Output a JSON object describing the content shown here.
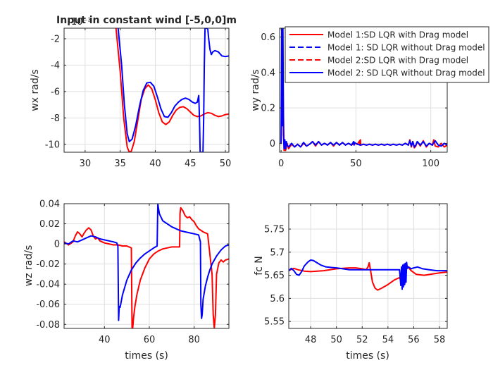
{
  "colors": {
    "model1": "#ff0000",
    "model2": "#0000ff",
    "axis": "#262626",
    "grid": "#dfdfdf"
  },
  "legend": {
    "placement": "top-right",
    "entries": [
      {
        "label": "Model 1:SD LQR with Drag model",
        "color": "#ff0000",
        "style": "solid"
      },
      {
        "label": "Model 1: SD LQR without Drag model",
        "color": "#0000ff",
        "style": "dashed"
      },
      {
        "label": "Model 2:SD LQR with Drag model",
        "color": "#ff0000",
        "style": "dashed"
      },
      {
        "label": "Model 2: SD LQR without Drag model",
        "color": "#0000ff",
        "style": "solid"
      }
    ]
  },
  "chart_data": [
    {
      "type": "line",
      "title": "Input in constant wind [-5,0,0]m",
      "xlabel": "",
      "ylabel": "wx rad/s",
      "exponent_label": "10⁻³",
      "xlim": [
        27,
        50.5
      ],
      "ylim": [
        -10.6,
        -1.2
      ],
      "xticks": [
        30,
        35,
        40,
        45,
        50
      ],
      "yticks": [
        -10,
        -8,
        -6,
        -4,
        -2
      ],
      "grid": true,
      "series": [
        {
          "name": "Model 1:SD LQR with Drag model",
          "color": "#ff0000",
          "dash": "solid",
          "x": [
            34.4,
            35.0,
            35.5,
            36.0,
            36.3,
            36.6,
            37.0,
            37.5,
            38.0,
            38.5,
            39.0,
            39.5,
            40.0,
            40.5,
            41.0,
            41.5,
            42.0,
            42.5,
            43.0,
            43.5,
            44.0,
            44.5,
            45.0,
            45.5,
            46.0,
            46.5,
            47.0,
            47.5,
            48.0,
            48.5,
            49.0,
            49.5,
            50.0,
            50.5
          ],
          "y": [
            -1.2,
            -4.5,
            -8.0,
            -10.2,
            -10.6,
            -10.5,
            -9.8,
            -8.2,
            -6.6,
            -5.8,
            -5.5,
            -5.8,
            -6.6,
            -7.6,
            -8.3,
            -8.5,
            -8.3,
            -7.8,
            -7.4,
            -7.2,
            -7.15,
            -7.3,
            -7.55,
            -7.8,
            -7.9,
            -7.85,
            -7.7,
            -7.6,
            -7.65,
            -7.8,
            -7.9,
            -7.85,
            -7.75,
            -7.7
          ]
        },
        {
          "name": "Model 2: SD LQR without Drag model",
          "color": "#0000ff",
          "dash": "solid",
          "x": [
            34.7,
            35.2,
            35.6,
            36.0,
            36.3,
            36.7,
            37.2,
            37.8,
            38.3,
            38.8,
            39.3,
            39.8,
            40.3,
            40.8,
            41.3,
            41.8,
            42.3,
            42.8,
            43.3,
            43.8,
            44.3,
            44.8,
            45.3,
            45.7,
            46.0,
            46.2,
            46.3,
            46.4,
            46.5,
            46.6,
            46.8,
            46.9,
            47.0,
            47.1,
            47.2,
            47.4,
            47.5,
            47.6,
            47.8,
            48.0,
            48.2,
            48.5,
            49.0,
            49.5,
            50.0,
            50.5
          ],
          "y": [
            -1.2,
            -4.0,
            -7.0,
            -9.2,
            -9.8,
            -9.6,
            -8.6,
            -7.0,
            -5.9,
            -5.35,
            -5.3,
            -5.6,
            -6.4,
            -7.3,
            -7.9,
            -7.95,
            -7.6,
            -7.1,
            -6.8,
            -6.6,
            -6.5,
            -6.6,
            -6.8,
            -6.9,
            -6.8,
            -6.3,
            -8.0,
            -10.6,
            -10.6,
            -10.6,
            -10.6,
            -8.0,
            -4.0,
            -1.2,
            -1.2,
            -1.2,
            -1.3,
            -1.9,
            -2.8,
            -3.2,
            -3.0,
            -2.9,
            -3.0,
            -3.3,
            -3.35,
            -3.3
          ]
        }
      ]
    },
    {
      "type": "line",
      "xlabel": "",
      "ylabel": "wy rad/s",
      "xlim": [
        -1,
        111
      ],
      "ylim": [
        -0.05,
        0.65
      ],
      "xticks": [
        0,
        50,
        100
      ],
      "yticks": [
        0,
        0.2,
        0.4,
        0.6
      ],
      "ytick_labels": [
        "0",
        "0.2",
        "0.4",
        "0.6"
      ],
      "grid": true,
      "series": [
        {
          "name": "Model 1:SD LQR with Drag model",
          "color": "#ff0000",
          "dash": "solid",
          "x": [
            0,
            0.5,
            1.0,
            1.5,
            2.0,
            2.5,
            3.0,
            3.5,
            4.0,
            5,
            7,
            9,
            11,
            13,
            15,
            17,
            19,
            21,
            23,
            25,
            27,
            29,
            31,
            33,
            35,
            37,
            39,
            41,
            43,
            45,
            47,
            49,
            51,
            52.5,
            52.8,
            53.0,
            53.2,
            55,
            57,
            59,
            61,
            63,
            65,
            67,
            69,
            71,
            73,
            75,
            77,
            79,
            81,
            83,
            85,
            86,
            87,
            88,
            89,
            90,
            91,
            93,
            95,
            97,
            99,
            101,
            102,
            103,
            105,
            107,
            109,
            111
          ],
          "y": [
            0,
            0.3,
            0.65,
            0.2,
            -0.04,
            0.02,
            -0.04,
            -0.02,
            0.0,
            -0.03,
            -0.005,
            -0.02,
            -0.005,
            -0.02,
            0.0,
            -0.015,
            -0.005,
            0.01,
            -0.015,
            0.01,
            -0.01,
            0.0,
            -0.01,
            0.005,
            -0.015,
            0.005,
            -0.01,
            0.005,
            -0.01,
            0.0,
            -0.01,
            0.0,
            -0.005,
            0.015,
            -0.01,
            0.02,
            -0.01,
            -0.005,
            -0.01,
            -0.005,
            -0.01,
            -0.005,
            -0.01,
            -0.005,
            -0.01,
            -0.005,
            -0.01,
            -0.005,
            -0.01,
            -0.005,
            -0.01,
            0.0,
            -0.01,
            0.02,
            -0.02,
            0.01,
            -0.025,
            -0.015,
            0.01,
            -0.015,
            0.015,
            -0.02,
            0.0,
            -0.01,
            0.02,
            -0.015,
            -0.02,
            0.0,
            -0.02,
            -0.01
          ]
        },
        {
          "name": "Model 2: SD LQR without Drag model",
          "color": "#0000ff",
          "dash": "solid",
          "x": [
            0,
            0.4,
            0.8,
            1.2,
            1.6,
            2.0,
            2.5,
            3.0,
            3.5,
            4.0,
            5,
            7,
            9,
            11,
            13,
            15,
            17,
            19,
            21,
            23,
            25,
            27,
            29,
            31,
            33,
            35,
            37,
            39,
            41,
            43,
            45,
            47,
            48.5,
            48.8,
            49,
            51,
            53,
            55,
            57,
            59,
            61,
            63,
            65,
            67,
            69,
            71,
            73,
            75,
            77,
            79,
            81,
            83,
            85,
            86,
            87,
            88,
            89,
            90,
            91,
            93,
            95,
            97,
            99,
            101,
            103,
            105,
            107,
            109,
            111
          ],
          "y": [
            0,
            0.65,
            0.1,
            0.65,
            0.05,
            -0.03,
            0.02,
            -0.03,
            0.01,
            -0.01,
            -0.02,
            0.0,
            -0.02,
            -0.005,
            -0.02,
            0.005,
            -0.015,
            -0.005,
            0.01,
            -0.01,
            0.01,
            -0.01,
            0.0,
            -0.01,
            0.005,
            -0.01,
            0.005,
            -0.01,
            0.005,
            -0.01,
            0.0,
            -0.01,
            0.01,
            -0.01,
            0.005,
            -0.005,
            -0.01,
            -0.005,
            -0.01,
            -0.005,
            -0.01,
            -0.005,
            -0.01,
            -0.005,
            -0.01,
            -0.005,
            -0.01,
            -0.005,
            -0.01,
            -0.005,
            -0.01,
            0.0,
            -0.01,
            0.015,
            -0.015,
            0.01,
            -0.02,
            -0.01,
            0.01,
            -0.01,
            0.01,
            -0.015,
            0.0,
            -0.01,
            0.015,
            -0.01,
            -0.015,
            0.0,
            -0.01
          ]
        }
      ]
    },
    {
      "type": "line",
      "xlabel": "times (s)",
      "ylabel": "wz rad/s",
      "xlim": [
        22,
        95.5
      ],
      "ylim": [
        -0.084,
        0.04
      ],
      "xticks": [
        40,
        60,
        80
      ],
      "yticks": [
        -0.08,
        -0.06,
        -0.04,
        -0.02,
        0,
        0.02,
        0.04
      ],
      "ytick_labels": [
        "-0.08",
        "-0.06",
        "-0.04",
        "-0.02",
        "0",
        "0.02",
        "0.04"
      ],
      "grid": true,
      "series": [
        {
          "name": "Model 1:SD LQR with Drag model",
          "color": "#ff0000",
          "dash": "solid",
          "x": [
            22,
            24,
            26,
            27,
            28,
            29,
            30,
            31,
            32,
            33,
            34,
            35,
            36,
            37,
            38,
            40,
            42,
            44,
            46,
            48,
            50,
            52.0,
            52.3,
            52.6,
            53.0,
            53.6,
            54.5,
            56,
            58,
            60,
            62,
            64,
            66,
            68,
            70,
            72,
            73.5,
            73.7,
            74.0,
            75,
            76,
            77,
            78,
            79,
            80,
            81,
            82,
            84,
            86,
            88,
            88.5,
            89.0,
            89.5,
            90,
            91,
            92,
            93,
            94,
            95.5
          ],
          "y": [
            0.002,
            -0.001,
            0.002,
            0.008,
            0.012,
            0.01,
            0.007,
            0.011,
            0.014,
            0.016,
            0.014,
            0.008,
            0.005,
            0.006,
            0.003,
            0.001,
            0.0,
            -0.001,
            -0.001,
            -0.002,
            -0.002,
            -0.004,
            -0.084,
            -0.084,
            -0.073,
            -0.062,
            -0.05,
            -0.036,
            -0.024,
            -0.015,
            -0.01,
            -0.007,
            -0.005,
            -0.004,
            -0.003,
            -0.003,
            -0.003,
            0.03,
            0.036,
            0.033,
            0.028,
            0.026,
            0.027,
            0.024,
            0.022,
            0.018,
            0.015,
            0.012,
            0.01,
            -0.03,
            -0.07,
            -0.084,
            -0.07,
            -0.03,
            -0.019,
            -0.016,
            -0.018,
            -0.016,
            -0.015
          ]
        },
        {
          "name": "Model 2: SD LQR without Drag model",
          "color": "#0000ff",
          "dash": "solid",
          "x": [
            22,
            24,
            26,
            28,
            30,
            32,
            34,
            36,
            38,
            40,
            42,
            44,
            45.5,
            46.0,
            46.3,
            46.6,
            47.0,
            48,
            50,
            52,
            54,
            56,
            58,
            60,
            62,
            63.5,
            63.8,
            64.0,
            64.5,
            66,
            68,
            70,
            72,
            74,
            76,
            78,
            80,
            82,
            82.8,
            83.0,
            83.3,
            83.6,
            84.0,
            85,
            86,
            87,
            88,
            90,
            92,
            93,
            94,
            95.5
          ],
          "y": [
            0.001,
            0.0,
            0.003,
            0.002,
            0.004,
            0.006,
            0.008,
            0.007,
            0.005,
            0.004,
            0.003,
            0.002,
            0.001,
            -0.002,
            -0.076,
            -0.062,
            -0.063,
            -0.051,
            -0.036,
            -0.026,
            -0.019,
            -0.014,
            -0.01,
            -0.007,
            -0.004,
            -0.002,
            0.04,
            0.037,
            0.03,
            0.023,
            0.02,
            0.017,
            0.015,
            0.013,
            0.012,
            0.011,
            0.01,
            0.009,
            0.002,
            -0.06,
            -0.074,
            -0.07,
            -0.055,
            -0.042,
            -0.033,
            -0.026,
            -0.02,
            -0.012,
            -0.006,
            -0.004,
            -0.002,
            -0.001
          ]
        }
      ]
    },
    {
      "type": "line",
      "xlabel": "times (s)",
      "ylabel": "fc N",
      "xlim": [
        46.3,
        58.6
      ],
      "ylim": [
        5.535,
        5.805
      ],
      "xticks": [
        48,
        50,
        52,
        54,
        56,
        58
      ],
      "yticks": [
        5.55,
        5.6,
        5.65,
        5.7,
        5.75
      ],
      "ytick_labels": [
        "5.55",
        "5.6",
        "5.65",
        "5.7",
        "5.75"
      ],
      "grid": true,
      "series": [
        {
          "name": "Model 1:SD LQR with Drag model",
          "color": "#ff0000",
          "dash": "solid",
          "x": [
            46.3,
            46.5,
            46.7,
            47.0,
            47.5,
            48.0,
            48.5,
            49.0,
            49.5,
            50.0,
            50.5,
            51.0,
            51.5,
            52.0,
            52.3,
            52.45,
            52.55,
            52.65,
            52.8,
            53.0,
            53.2,
            53.5,
            54.0,
            54.5,
            54.9,
            55.0,
            55.1,
            55.3,
            55.5,
            55.8,
            56.2,
            56.8,
            57.5,
            58.0,
            58.6
          ],
          "y": [
            5.66,
            5.663,
            5.665,
            5.662,
            5.659,
            5.658,
            5.659,
            5.66,
            5.662,
            5.664,
            5.665,
            5.666,
            5.666,
            5.664,
            5.662,
            5.668,
            5.677,
            5.66,
            5.635,
            5.622,
            5.618,
            5.622,
            5.63,
            5.64,
            5.645,
            5.64,
            5.66,
            5.672,
            5.67,
            5.66,
            5.652,
            5.65,
            5.653,
            5.655,
            5.657
          ]
        },
        {
          "name": "Model 2: SD LQR without Drag model",
          "color": "#0000ff",
          "dash": "solid",
          "x": [
            46.3,
            46.5,
            46.7,
            46.9,
            47.1,
            47.3,
            47.5,
            47.8,
            48.0,
            48.2,
            48.5,
            48.8,
            49.2,
            49.6,
            50.0,
            50.5,
            51.0,
            51.5,
            52.0,
            53.0,
            54.0,
            54.9,
            55.0,
            55.05,
            55.1,
            55.15,
            55.2,
            55.25,
            55.3,
            55.35,
            55.4,
            55.45,
            55.5,
            55.6,
            55.8,
            56.0,
            56.3,
            56.7,
            57.2,
            57.8,
            58.6
          ],
          "y": [
            5.66,
            5.665,
            5.66,
            5.652,
            5.65,
            5.658,
            5.67,
            5.679,
            5.683,
            5.682,
            5.677,
            5.672,
            5.668,
            5.667,
            5.666,
            5.664,
            5.662,
            5.662,
            5.662,
            5.662,
            5.662,
            5.662,
            5.628,
            5.668,
            5.62,
            5.672,
            5.625,
            5.674,
            5.63,
            5.676,
            5.635,
            5.678,
            5.665,
            5.668,
            5.664,
            5.666,
            5.668,
            5.664,
            5.662,
            5.66,
            5.66
          ]
        }
      ]
    }
  ]
}
